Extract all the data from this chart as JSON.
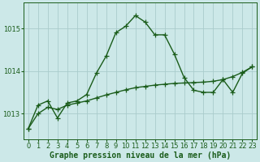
{
  "line1_x": [
    0,
    1,
    2,
    3,
    4,
    5,
    6,
    7,
    8,
    9,
    10,
    11,
    12,
    13,
    14,
    15,
    16,
    17,
    18,
    19,
    20,
    21,
    22,
    23
  ],
  "line1_y": [
    1012.65,
    1013.2,
    1013.3,
    1012.9,
    1013.25,
    1013.3,
    1013.45,
    1013.95,
    1014.35,
    1014.9,
    1015.05,
    1015.3,
    1015.15,
    1014.85,
    1014.85,
    1014.4,
    1013.85,
    1013.55,
    1013.5,
    1013.5,
    1013.8,
    1013.5,
    1013.95,
    1014.1
  ],
  "line2_x": [
    0,
    1,
    2,
    3,
    4,
    5,
    6,
    7,
    8,
    9,
    10,
    11,
    12,
    13,
    14,
    15,
    16,
    17,
    18,
    19,
    20,
    21,
    22,
    23
  ],
  "line2_y": [
    1012.65,
    1013.0,
    1013.15,
    1013.1,
    1013.2,
    1013.25,
    1013.3,
    1013.37,
    1013.44,
    1013.5,
    1013.56,
    1013.61,
    1013.64,
    1013.67,
    1013.69,
    1013.71,
    1013.72,
    1013.73,
    1013.74,
    1013.76,
    1013.8,
    1013.87,
    1013.97,
    1014.1
  ],
  "bg_color": "#cce8e8",
  "grid_color": "#aacccc",
  "line_color": "#1a5c1a",
  "xlabel": "Graphe pression niveau de la mer (hPa)",
  "ylim": [
    1012.4,
    1015.6
  ],
  "yticks": [
    1013,
    1014,
    1015
  ],
  "xticks": [
    0,
    1,
    2,
    3,
    4,
    5,
    6,
    7,
    8,
    9,
    10,
    11,
    12,
    13,
    14,
    15,
    16,
    17,
    18,
    19,
    20,
    21,
    22,
    23
  ],
  "marker": "+",
  "markersize": 4,
  "linewidth": 1.0,
  "xlabel_fontsize": 7.0,
  "tick_fontsize": 6.0
}
